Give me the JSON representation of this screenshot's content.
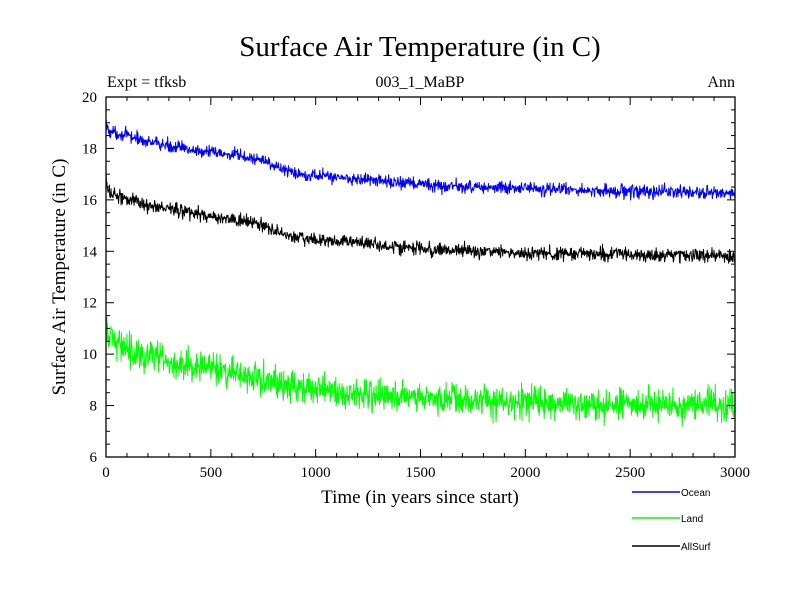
{
  "chart_data": {
    "type": "line",
    "title": "Surface Air Temperature (in C)",
    "subtitle": "003_1_MaBP",
    "top_left_label": "Expt = tfksb",
    "top_right_label": "Ann",
    "xlabel": "Time (in years since start)",
    "ylabel": "Surface Air Temperature (in C)",
    "xlim": [
      0,
      3000
    ],
    "ylim": [
      6,
      20
    ],
    "xticks": [
      0,
      500,
      1000,
      1500,
      2000,
      2500,
      3000
    ],
    "xtick_labels": [
      "0",
      "500",
      "1000",
      "1500",
      "2000",
      "2500",
      "3000"
    ],
    "yticks": [
      6,
      8,
      10,
      12,
      14,
      16,
      18,
      20
    ],
    "ytick_labels": [
      "6",
      "8",
      "10",
      "12",
      "14",
      "16",
      "18",
      "20"
    ],
    "grid": false,
    "legend_position": "bottom-right",
    "x": [
      0,
      10,
      50,
      100,
      200,
      300,
      400,
      500,
      600,
      700,
      750,
      800,
      850,
      900,
      1000,
      1100,
      1200,
      1300,
      1400,
      1500,
      1600,
      1700,
      1800,
      1900,
      2000,
      2100,
      2200,
      2300,
      2400,
      2500,
      2600,
      2700,
      2800,
      2900,
      3000
    ],
    "series": [
      {
        "name": "Ocean",
        "color": "#0000ff",
        "noise": 0.12,
        "values": [
          19.0,
          18.7,
          18.6,
          18.5,
          18.25,
          18.1,
          17.95,
          17.85,
          17.75,
          17.6,
          17.55,
          17.35,
          17.15,
          17.05,
          16.95,
          16.9,
          16.8,
          16.75,
          16.65,
          16.6,
          16.55,
          16.5,
          16.5,
          16.45,
          16.45,
          16.4,
          16.4,
          16.35,
          16.35,
          16.35,
          16.3,
          16.3,
          16.3,
          16.25,
          16.25
        ]
      },
      {
        "name": "Land",
        "color": "#00ff00",
        "noise": 0.3,
        "values": [
          11.2,
          10.6,
          10.5,
          10.3,
          9.9,
          9.7,
          9.55,
          9.4,
          9.25,
          9.1,
          9.05,
          8.95,
          8.85,
          8.75,
          8.65,
          8.55,
          8.5,
          8.45,
          8.35,
          8.3,
          8.25,
          8.25,
          8.2,
          8.15,
          8.15,
          8.1,
          8.1,
          8.05,
          8.05,
          8.05,
          8.05,
          8.05,
          8.05,
          8.0,
          8.0
        ]
      },
      {
        "name": "AllSurf",
        "color": "#000000",
        "noise": 0.13,
        "values": [
          16.8,
          16.3,
          16.2,
          16.05,
          15.8,
          15.65,
          15.5,
          15.35,
          15.25,
          15.1,
          15.0,
          14.8,
          14.65,
          14.55,
          14.45,
          14.4,
          14.35,
          14.25,
          14.15,
          14.1,
          14.05,
          14.0,
          14.0,
          13.95,
          13.95,
          13.9,
          13.9,
          13.9,
          13.9,
          13.9,
          13.85,
          13.85,
          13.85,
          13.85,
          13.8
        ]
      }
    ]
  }
}
